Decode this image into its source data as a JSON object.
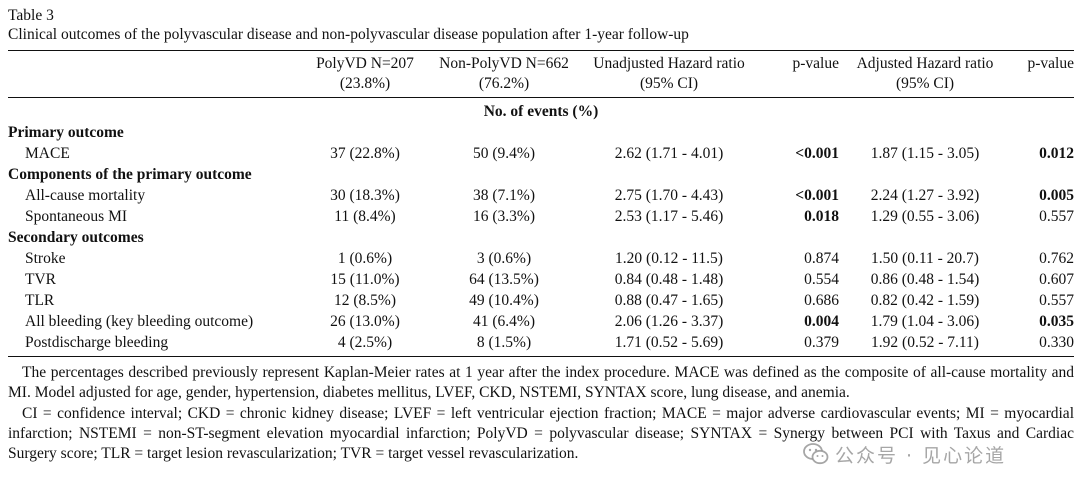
{
  "table_label": "Table 3",
  "caption": "Clinical outcomes of the polyvascular disease and non-polyvascular disease population after 1-year follow-up",
  "headers": [
    {
      "line1": "",
      "line2": ""
    },
    {
      "line1": "PolyVD N=207",
      "line2": "(23.8%)"
    },
    {
      "line1": "Non-PolyVD N=662",
      "line2": "(76.2%)"
    },
    {
      "line1": "Unadjusted Hazard ratio",
      "line2": "(95% CI)"
    },
    {
      "line1": "p-value",
      "line2": ""
    },
    {
      "line1": "Adjusted Hazard ratio",
      "line2": "(95% CI)"
    },
    {
      "line1": "p-value",
      "line2": ""
    }
  ],
  "events_header": "No. of events (%)",
  "sections": [
    {
      "title": "Primary outcome",
      "rows": [
        {
          "label": "MACE",
          "polyvd": "37 (22.8%)",
          "nonpolyvd": "50 (9.4%)",
          "unadj_hr": "2.62 (1.71 - 4.01)",
          "p1": "<0.001",
          "p1_bold": true,
          "adj_hr": "1.87 (1.15 - 3.05)",
          "p2": "0.012",
          "p2_bold": true
        }
      ]
    },
    {
      "title": "Components of the primary outcome",
      "rows": [
        {
          "label": "All-cause mortality",
          "polyvd": "30 (18.3%)",
          "nonpolyvd": "38 (7.1%)",
          "unadj_hr": "2.75 (1.70 - 4.43)",
          "p1": "<0.001",
          "p1_bold": true,
          "adj_hr": "2.24 (1.27 - 3.92)",
          "p2": "0.005",
          "p2_bold": true
        },
        {
          "label": "Spontaneous MI",
          "polyvd": "11 (8.4%)",
          "nonpolyvd": "16 (3.3%)",
          "unadj_hr": "2.53 (1.17 - 5.46)",
          "p1": "0.018",
          "p1_bold": true,
          "adj_hr": "1.29 (0.55 - 3.06)",
          "p2": "0.557",
          "p2_bold": false
        }
      ]
    },
    {
      "title": "Secondary outcomes",
      "rows": [
        {
          "label": "Stroke",
          "polyvd": "1 (0.6%)",
          "nonpolyvd": "3 (0.6%)",
          "unadj_hr": "1.20 (0.12 - 11.5)",
          "p1": "0.874",
          "p1_bold": false,
          "adj_hr": "1.50 (0.11 - 20.7)",
          "p2": "0.762",
          "p2_bold": false
        },
        {
          "label": "TVR",
          "polyvd": "15 (11.0%)",
          "nonpolyvd": "64 (13.5%)",
          "unadj_hr": "0.84 (0.48 - 1.48)",
          "p1": "0.554",
          "p1_bold": false,
          "adj_hr": "0.86 (0.48 - 1.54)",
          "p2": "0.607",
          "p2_bold": false
        },
        {
          "label": "TLR",
          "polyvd": "12 (8.5%)",
          "nonpolyvd": "49 (10.4%)",
          "unadj_hr": "0.88 (0.47 - 1.65)",
          "p1": "0.686",
          "p1_bold": false,
          "adj_hr": "0.82 (0.42 - 1.59)",
          "p2": "0.557",
          "p2_bold": false
        },
        {
          "label": "All bleeding (key bleeding outcome)",
          "polyvd": "26 (13.0%)",
          "nonpolyvd": "41 (6.4%)",
          "unadj_hr": "2.06 (1.26 - 3.37)",
          "p1": "0.004",
          "p1_bold": true,
          "adj_hr": "1.79 (1.04 - 3.06)",
          "p2": "0.035",
          "p2_bold": true
        },
        {
          "label": "Postdischarge bleeding",
          "polyvd": "4 (2.5%)",
          "nonpolyvd": "8 (1.5%)",
          "unadj_hr": "1.71 (0.52 - 5.69)",
          "p1": "0.379",
          "p1_bold": false,
          "adj_hr": "1.92 (0.52 - 7.11)",
          "p2": "0.330",
          "p2_bold": false
        }
      ]
    }
  ],
  "notes": [
    "The percentages described previously represent Kaplan-Meier rates at 1 year after the index procedure. MACE was defined as the composite of all-cause mortality and MI. Model adjusted for age, gender, hypertension, diabetes mellitus, LVEF, CKD, NSTEMI, SYNTAX score, lung disease, and anemia.",
    "CI = confidence interval; CKD = chronic kidney disease; LVEF = left ventricular ejection fraction; MACE = major adverse cardiovascular events; MI = myocardial infarction; NSTEMI = non-ST-segment elevation myocardial infarction; PolyVD = polyvascular disease; SYNTAX = Synergy between PCI with Taxus and Cardiac Surgery score; TLR = target lesion revascularization; TVR = target vessel revascularization."
  ],
  "watermark": {
    "text": "公众号 · 见心论道",
    "icon": "wechat-icon"
  }
}
